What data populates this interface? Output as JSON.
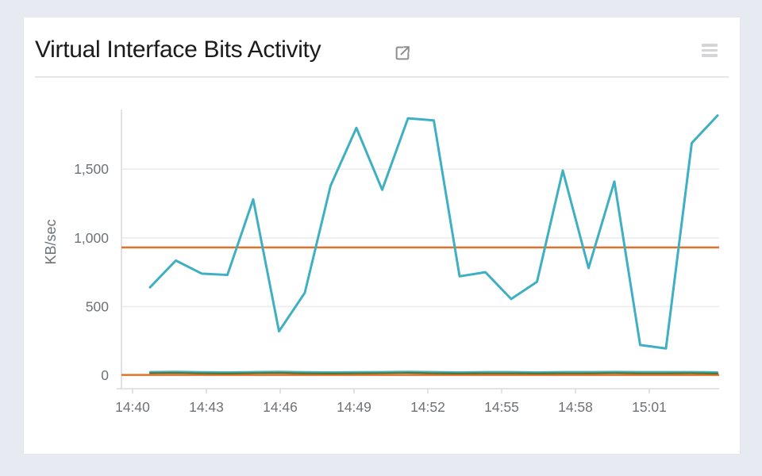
{
  "widget": {
    "title": "Virtual Interface Bits Activity",
    "icons": {
      "external_link": "external-link-icon",
      "menu": "menu-icon"
    }
  },
  "colors": {
    "teal": "#3fafc2",
    "green": "#55752f",
    "orange": "#e0722d",
    "grid": "#ececee",
    "axis": "#d9dadc",
    "tick_text": "#6e7276",
    "title_text": "#1b1b1b",
    "icon_gray": "#8e8e92"
  },
  "chart_data": {
    "type": "line",
    "title": "Virtual Interface Bits Activity",
    "xlabel": "",
    "ylabel": "KB/sec",
    "legend": "none",
    "grid": "horizontal",
    "ylim": [
      -100,
      1935
    ],
    "y_ticks": [
      {
        "value": 0,
        "label": "0"
      },
      {
        "value": 500,
        "label": "500"
      },
      {
        "value": 1000,
        "label": "1,000"
      },
      {
        "value": 1500,
        "label": "1,500"
      }
    ],
    "x_tick_labels": [
      "14:40",
      "14:43",
      "14:46",
      "14:49",
      "14:52",
      "14:55",
      "14:58",
      "15:01"
    ],
    "x_times_estimated": [
      "14:41",
      "14:42",
      "14:43",
      "14:44",
      "14:45",
      "14:46",
      "14:47",
      "14:48",
      "14:49",
      "14:50",
      "14:51",
      "14:52",
      "14:53",
      "14:54",
      "14:55",
      "14:56",
      "14:57",
      "14:58",
      "14:59",
      "15:00",
      "15:01",
      "15:02",
      "15:03"
    ],
    "series": [
      {
        "name": "kb-sec-main-teal",
        "color": "#3fafc2",
        "width": 3,
        "values": [
          640,
          835,
          740,
          730,
          1280,
          320,
          600,
          1380,
          1800,
          1350,
          1870,
          1855,
          720,
          750,
          555,
          680,
          1490,
          780,
          1410,
          220,
          195,
          1690,
          1890
        ]
      },
      {
        "name": "kb-sec-low-teal-edge",
        "color": "#3fafc2",
        "width": 1.8,
        "values": [
          26,
          28,
          25,
          24,
          26,
          28,
          25,
          24,
          25,
          26,
          28,
          26,
          24,
          26,
          26,
          24,
          26,
          26,
          27,
          26,
          26,
          26,
          24
        ]
      },
      {
        "name": "kb-sec-low-green",
        "color": "#55752f",
        "width": 2.4,
        "values": [
          16,
          18,
          15,
          13,
          16,
          18,
          14,
          13,
          15,
          16,
          18,
          15,
          13,
          15,
          15,
          13,
          15,
          15,
          17,
          15,
          15,
          16,
          13
        ]
      }
    ],
    "reference_lines": [
      {
        "name": "orange-reference-high",
        "color": "#e0722d",
        "value": 930,
        "width": 2.5
      },
      {
        "name": "orange-reference-low",
        "color": "#e0722d",
        "value": 2,
        "width": 2.5
      }
    ]
  }
}
